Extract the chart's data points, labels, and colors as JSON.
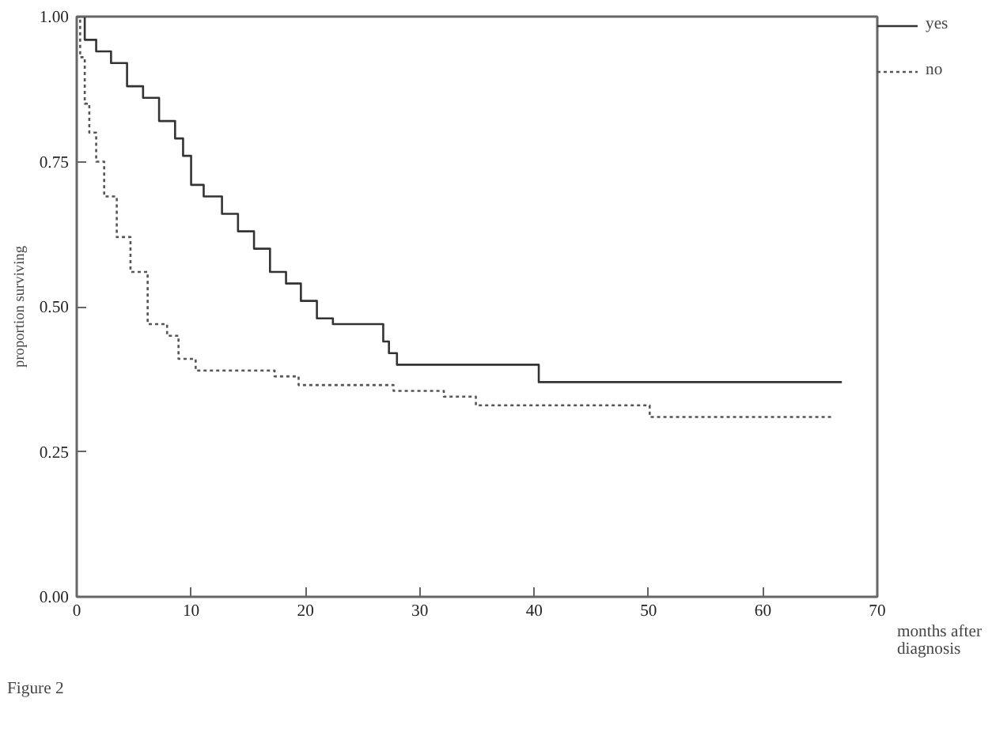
{
  "chart_data": {
    "type": "step",
    "xlabel": "months after diagnosis",
    "ylabel": "proportion surviving",
    "annotations": [
      "Figure 2"
    ],
    "xlim": [
      0,
      70
    ],
    "ylim": [
      0,
      1
    ],
    "xticks": [
      0,
      10,
      20,
      30,
      40,
      50,
      60,
      70
    ],
    "yticks": [
      {
        "value": 0,
        "label": "0.00"
      },
      {
        "value": 0.25,
        "label": "0.25"
      },
      {
        "value": 0.5,
        "label": "0.50"
      },
      {
        "value": 0.75,
        "label": "0.75"
      },
      {
        "value": 1,
        "label": "1.00"
      }
    ],
    "grid": false,
    "legend": "top right",
    "marker": "none",
    "series": [
      {
        "name": "yes",
        "color": "#333333",
        "line_style": "solid",
        "x": [
          0,
          0.7,
          1.7,
          3.0,
          4.4,
          5.8,
          7.2,
          8.6,
          9.3,
          10.0,
          11.1,
          12.7,
          14.1,
          15.5,
          16.9,
          18.3,
          19.6,
          21.0,
          22.4,
          26.8,
          27.3,
          28.0,
          40.4,
          66.9
        ],
        "values": [
          1.0,
          0.96,
          0.94,
          0.92,
          0.88,
          0.86,
          0.82,
          0.79,
          0.76,
          0.71,
          0.69,
          0.66,
          0.63,
          0.6,
          0.56,
          0.54,
          0.51,
          0.48,
          0.47,
          0.44,
          0.42,
          0.4,
          0.37,
          0.37
        ]
      },
      {
        "name": "no",
        "color": "#555555",
        "line_style": "dotted",
        "x": [
          0,
          0.3,
          0.7,
          1.1,
          1.7,
          2.4,
          3.5,
          4.7,
          6.2,
          7.9,
          8.9,
          10.4,
          17.3,
          19.4,
          27.7,
          32.1,
          34.9,
          50.1,
          66.0
        ],
        "values": [
          1.0,
          0.93,
          0.85,
          0.8,
          0.75,
          0.69,
          0.62,
          0.56,
          0.47,
          0.45,
          0.41,
          0.39,
          0.38,
          0.365,
          0.355,
          0.345,
          0.33,
          0.31,
          0.31
        ]
      }
    ]
  }
}
